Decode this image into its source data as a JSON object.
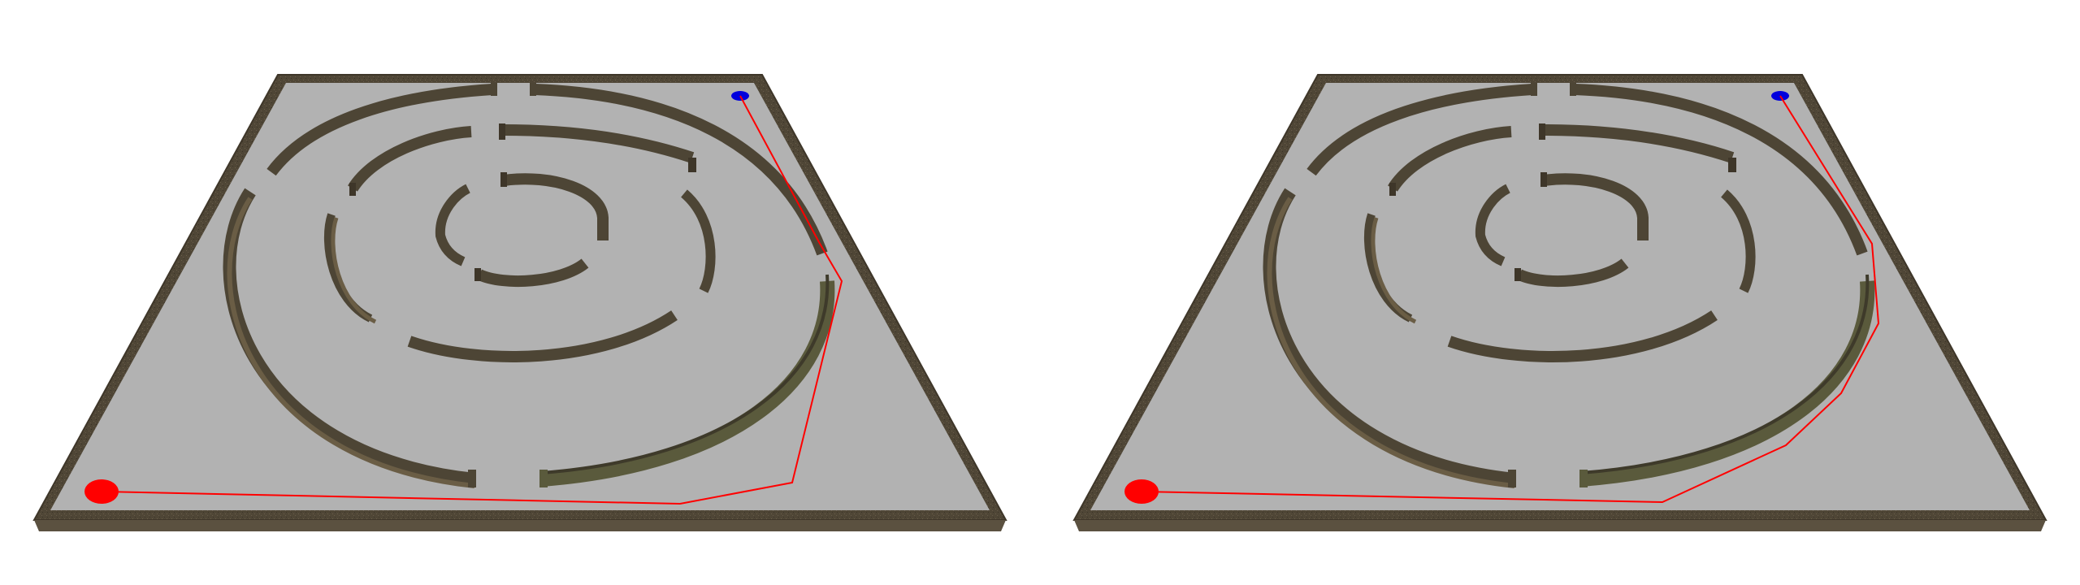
{
  "scene": {
    "description_hidden": "",
    "board_color": "#b2b2b2",
    "wall_top_color": "#4d4535",
    "wall_side_color": "#6a5d45",
    "wall_highlight_color": "#5a5a3c",
    "start_marker_color": "#ff0000",
    "goal_marker_color": "#0000dd",
    "path_color": "#ff0000"
  },
  "panels": [
    {
      "id": "left",
      "path_variant": "polyline-a"
    },
    {
      "id": "right",
      "path_variant": "polyline-b"
    }
  ]
}
